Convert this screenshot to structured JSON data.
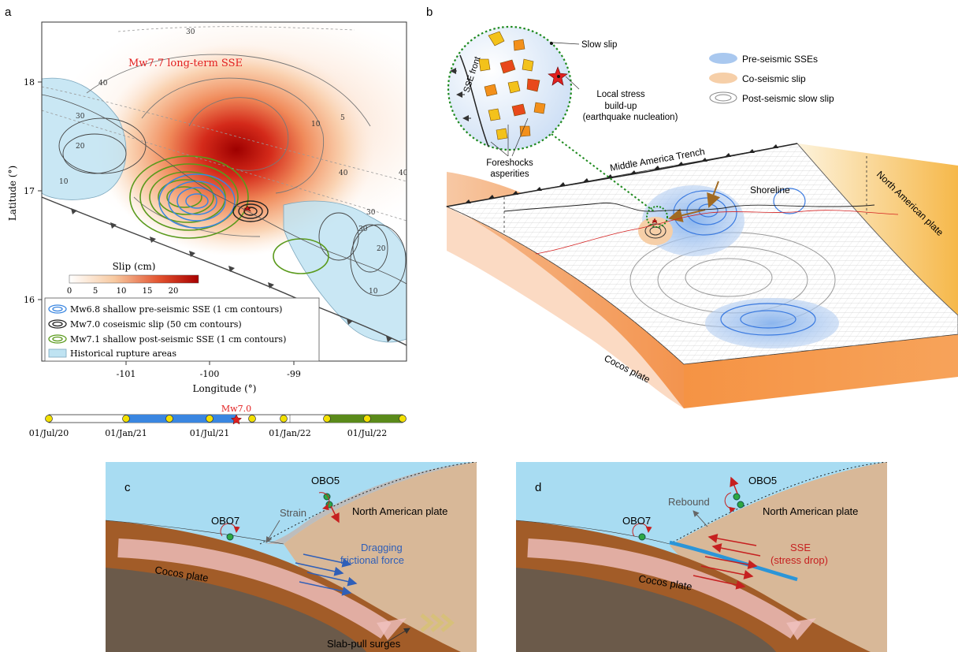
{
  "panel_a": {
    "label": "a",
    "map_title": "Mw7.7 long-term SSE",
    "xlabel": "Longitude (°)",
    "ylabel": "Latitude (°)",
    "x_ticks": [
      "-101",
      "-100",
      "-99"
    ],
    "y_ticks": [
      "18",
      "17",
      "16"
    ],
    "contour_labels": [
      "30",
      "40",
      "40",
      "30",
      "20",
      "10",
      "10",
      "5",
      "40",
      "30",
      "30",
      "20",
      "10"
    ],
    "colorbar": {
      "title": "Slip (cm)",
      "ticks": [
        "0",
        "5",
        "10",
        "15",
        "20"
      ],
      "colors": [
        "#ffffff",
        "#b30000"
      ]
    },
    "legend": [
      {
        "label": "Mw6.8 shallow pre-seismic SSE (1 cm contours)",
        "color": "#3a86e0"
      },
      {
        "label": "Mw7.0 coseismic slip (50 cm contours)",
        "color": "#222222"
      },
      {
        "label": "Mw7.1 shallow post-seismic SSE (1 cm contours)",
        "color": "#5a9a1c"
      },
      {
        "label": "Historical rupture areas",
        "color": "#bfe3f2"
      }
    ]
  },
  "timeline": {
    "event_label": "Mw7.0",
    "tick_labels": [
      "01/Jul/20",
      "01/Jan/21",
      "01/Jul/21",
      "01/Jan/22",
      "01/Jul/22"
    ],
    "pre_color": "#3a86e0",
    "post_color": "#5a8a1a",
    "marker_color": "#f2e000"
  },
  "panel_b": {
    "label": "b",
    "inset_labels": [
      "SSE front",
      "Slow slip",
      "Local stress",
      "build-up",
      "(earthquake nucleation)",
      "Foreshocks",
      "asperities"
    ],
    "legend": [
      {
        "label": "Pre-seismic SSEs",
        "color": "#a9c8ef"
      },
      {
        "label": "Co-seismic slip",
        "color": "#f6cfa8"
      },
      {
        "label": "Post-seismic slow slip",
        "color": "#dddddd"
      }
    ],
    "labels": {
      "trench": "Middle America Trench",
      "shoreline": "Shoreline",
      "north_american": "North American plate",
      "cocos": "Cocos plate"
    }
  },
  "panel_c": {
    "label": "c",
    "station_obo5": "OBO5",
    "station_obo7": "OBO7",
    "strain": "Strain",
    "north_american": "North American plate",
    "force_line1": "Dragging",
    "force_line2": "frictional force",
    "cocos": "Cocos plate",
    "slab_pull": "Slab-pull surges"
  },
  "panel_d": {
    "label": "d",
    "station_obo5": "OBO5",
    "station_obo7": "OBO7",
    "rebound": "Rebound",
    "north_american": "North American plate",
    "sse_line1": "SSE",
    "sse_line2": "(stress drop)",
    "cocos": "Cocos plate"
  }
}
